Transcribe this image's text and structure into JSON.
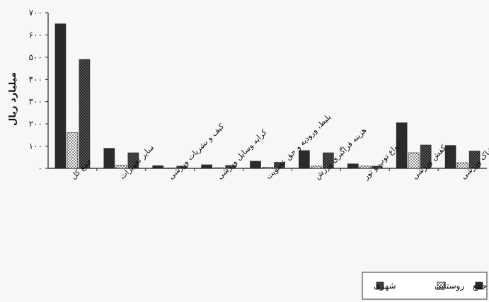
{
  "chart_data": {
    "type": "bar",
    "ylabel": "میلیارد ریال",
    "ylim": [
      0,
      700
    ],
    "yticks": [
      "۰",
      "۱۰۰",
      "۲۰۰",
      "۳۰۰",
      "۴۰۰",
      "۵۰۰",
      "۶۰۰",
      "۷۰۰"
    ],
    "categories": [
      "جمع کل",
      "سایر تجهیزات",
      "کیف و نشریات ورزشی",
      "کرایه وسایل ورزشی",
      "بلیط، ورودیه و حق عضویت",
      "هزینه فراگیری ورزش",
      "انواع توپ و تور",
      "کفش ورزشی",
      "پوشاک ورزشی"
    ],
    "series": [
      {
        "name": "جمع",
        "color": "#2b2b2b",
        "pattern": "solid",
        "values": [
          650,
          90,
          12,
          16,
          32,
          80,
          20,
          205,
          103
        ]
      },
      {
        "name": "روستایی",
        "color": "#ffffff",
        "pattern": "dotted",
        "values": [
          160,
          15,
          2,
          3,
          5,
          10,
          10,
          70,
          25
        ]
      },
      {
        "name": "شهری",
        "color": "#3a3a3a",
        "pattern": "checker",
        "values": [
          490,
          70,
          10,
          13,
          27,
          70,
          10,
          105,
          78
        ]
      }
    ],
    "legend": {
      "position": "bottom-right"
    }
  }
}
